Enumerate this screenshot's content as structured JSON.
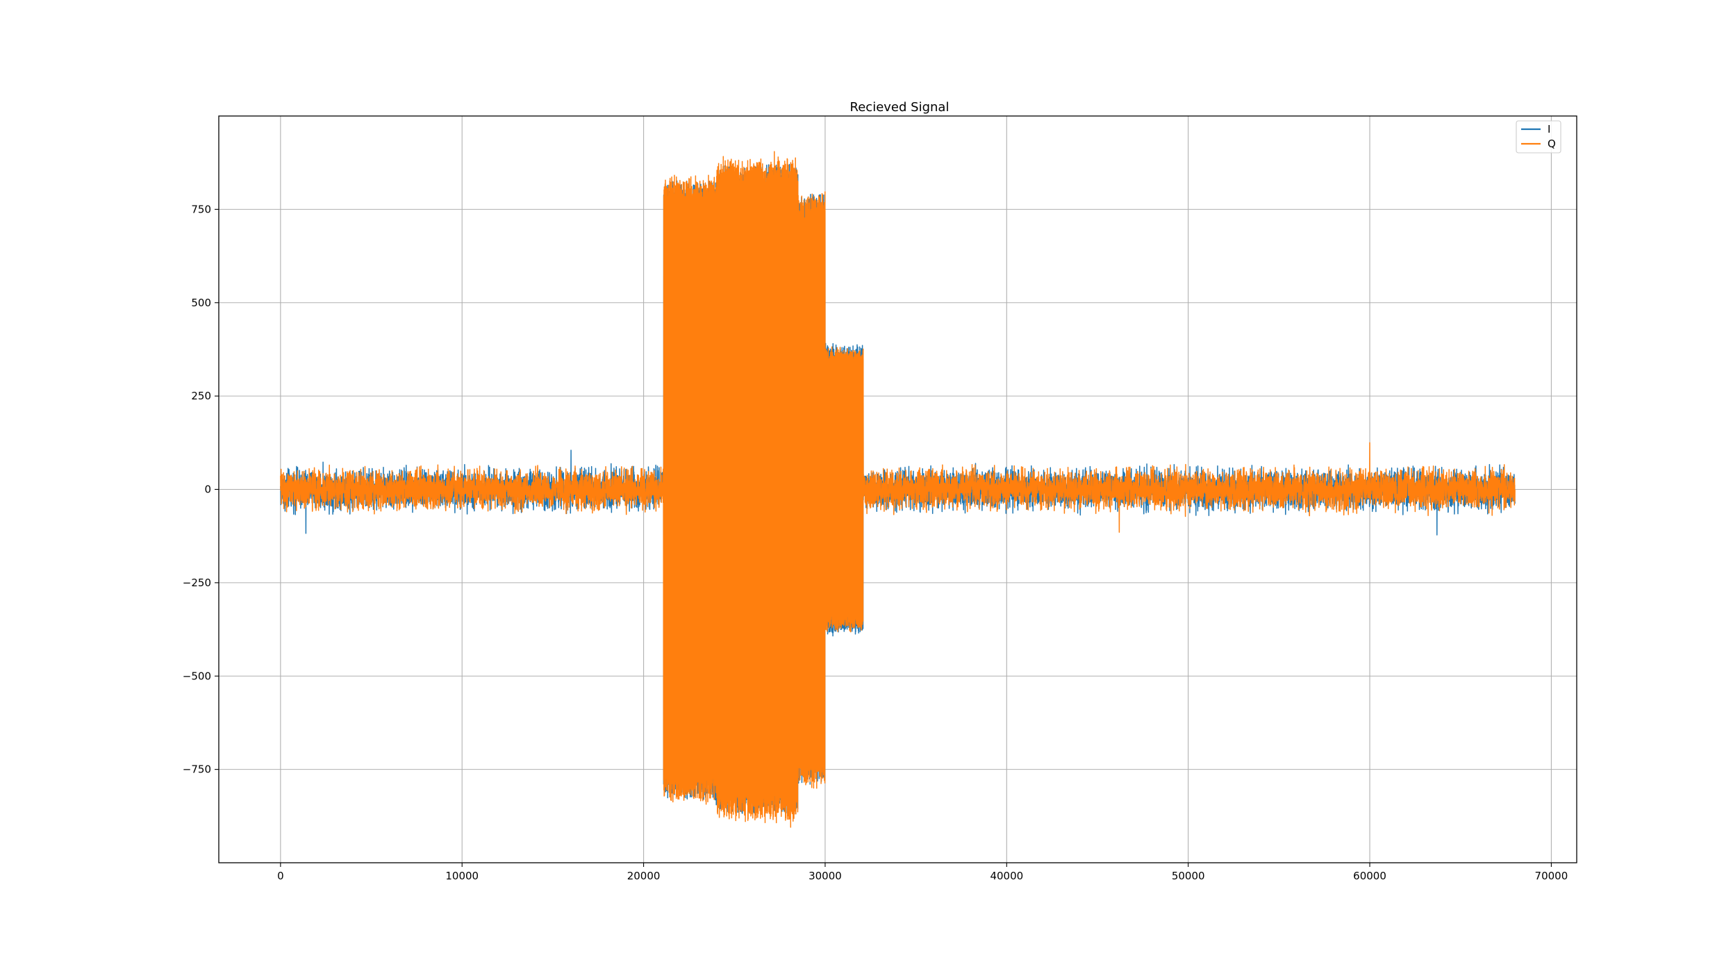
{
  "chart_data": {
    "type": "line",
    "title": "Recieved Signal",
    "xlabel": "",
    "ylabel": "",
    "xlim": [
      -3400,
      71400
    ],
    "ylim": [
      -1000,
      1000
    ],
    "x_ticks": [
      0,
      10000,
      20000,
      30000,
      40000,
      50000,
      60000,
      70000
    ],
    "x_tick_labels": [
      "0",
      "10000",
      "20000",
      "30000",
      "40000",
      "50000",
      "60000",
      "70000"
    ],
    "y_ticks": [
      -750,
      -500,
      -250,
      0,
      250,
      500,
      750
    ],
    "y_tick_labels": [
      "−750",
      "−500",
      "−250",
      "0",
      "250",
      "500",
      "750"
    ],
    "grid": true,
    "legend_position": "upper-right",
    "series": [
      {
        "name": "I",
        "color": "#1f77b4",
        "segments": [
          {
            "x_start": 0,
            "x_end": 21100,
            "amplitude": 75
          },
          {
            "x_start": 21100,
            "x_end": 24000,
            "amplitude": 820
          },
          {
            "x_start": 24000,
            "x_end": 28500,
            "amplitude": 860
          },
          {
            "x_start": 28500,
            "x_end": 30000,
            "amplitude": 780
          },
          {
            "x_start": 30000,
            "x_end": 32100,
            "amplitude": 380
          },
          {
            "x_start": 32100,
            "x_end": 68000,
            "amplitude": 75
          }
        ],
        "noise_peaks": [
          {
            "x": 1400,
            "min": -118
          },
          {
            "x": 16000,
            "max": 105
          },
          {
            "x": 63700,
            "min": -122
          }
        ]
      },
      {
        "name": "Q",
        "color": "#ff7f0e",
        "segments": [
          {
            "x_start": 0,
            "x_end": 21100,
            "amplitude": 75
          },
          {
            "x_start": 21100,
            "x_end": 24000,
            "amplitude": 830
          },
          {
            "x_start": 24000,
            "x_end": 28500,
            "amplitude": 880
          },
          {
            "x_start": 28500,
            "x_end": 30000,
            "amplitude": 790
          },
          {
            "x_start": 30000,
            "x_end": 32100,
            "amplitude": 370
          },
          {
            "x_start": 32100,
            "x_end": 68000,
            "amplitude": 75
          }
        ],
        "noise_peaks": [
          {
            "x": 27200,
            "max": 905
          },
          {
            "x": 28100,
            "min": -905
          },
          {
            "x": 60000,
            "max": 125
          },
          {
            "x": 46200,
            "min": -115
          }
        ]
      }
    ]
  }
}
